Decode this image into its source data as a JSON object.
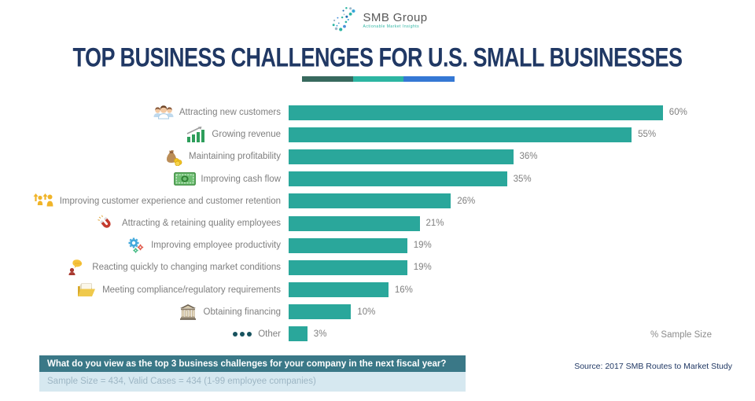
{
  "logo": {
    "name": "SMB Group",
    "tagline": "Actionable Market Insights"
  },
  "title": "TOP BUSINESS CHALLENGES FOR U.S. SMALL BUSINESSES",
  "chart_data": {
    "type": "bar",
    "orientation": "horizontal",
    "title": "Top Business Challenges for U.S. Small Businesses",
    "categories": [
      "Attracting new customers",
      "Growing revenue",
      "Maintaining profitability",
      "Improving cash flow",
      "Improving customer experience and customer retention",
      "Attracting & retaining quality employees",
      "Improving employee productivity",
      "Reacting quickly to changing market conditions",
      "Meeting compliance/regulatory requirements",
      "Obtaining financing",
      "Other"
    ],
    "values": [
      60,
      55,
      36,
      35,
      26,
      21,
      19,
      19,
      16,
      10,
      3
    ],
    "value_suffix": "%",
    "icons": [
      "people-group-icon",
      "growth-chart-icon",
      "money-bag-icon",
      "cash-icon",
      "customers-up-icon",
      "magnet-icon",
      "gears-icon",
      "feedback-icon",
      "folder-icon",
      "bank-icon",
      "ellipsis-icon"
    ],
    "xlabel": "% Sample Size",
    "axis_note": "% Sample Size",
    "xlim": [
      0,
      62
    ],
    "bar_color": "#2AA79B",
    "grid": false,
    "legend": false
  },
  "footnote": {
    "question": "What do you view as the top 3 business challenges for your company in the next fiscal year?",
    "sample": "Sample Size = 434, Valid Cases = 434 (1-99 employee companies)"
  },
  "source": "Source: 2017 SMB Routes to Market Study",
  "colors": {
    "title": "#203864",
    "bar": "#2AA79B",
    "label_text": "#7F7F7F",
    "divider": [
      "#38695E",
      "#2CB5A2",
      "#3578D4"
    ],
    "question_header_bg": "#3A7887",
    "question_header_text": "#FFFFFF",
    "question_body_bg": "#D6E8F0",
    "question_body_text": "#9DB6C4",
    "source_text": "#203864"
  }
}
